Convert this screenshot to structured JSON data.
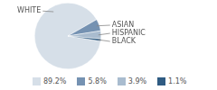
{
  "chart_data": {
    "type": "pie",
    "categories": [
      "WHITE",
      "ASIAN",
      "HISPANIC",
      "BLACK"
    ],
    "values": [
      89.2,
      5.8,
      3.9,
      1.1
    ],
    "value_labels": [
      "89.2%",
      "5.8%",
      "3.9%",
      "1.1%"
    ],
    "colors": [
      "#d6dfe8",
      "#7592b2",
      "#a9bccf",
      "#2f5b82"
    ],
    "legend": "bottom"
  }
}
